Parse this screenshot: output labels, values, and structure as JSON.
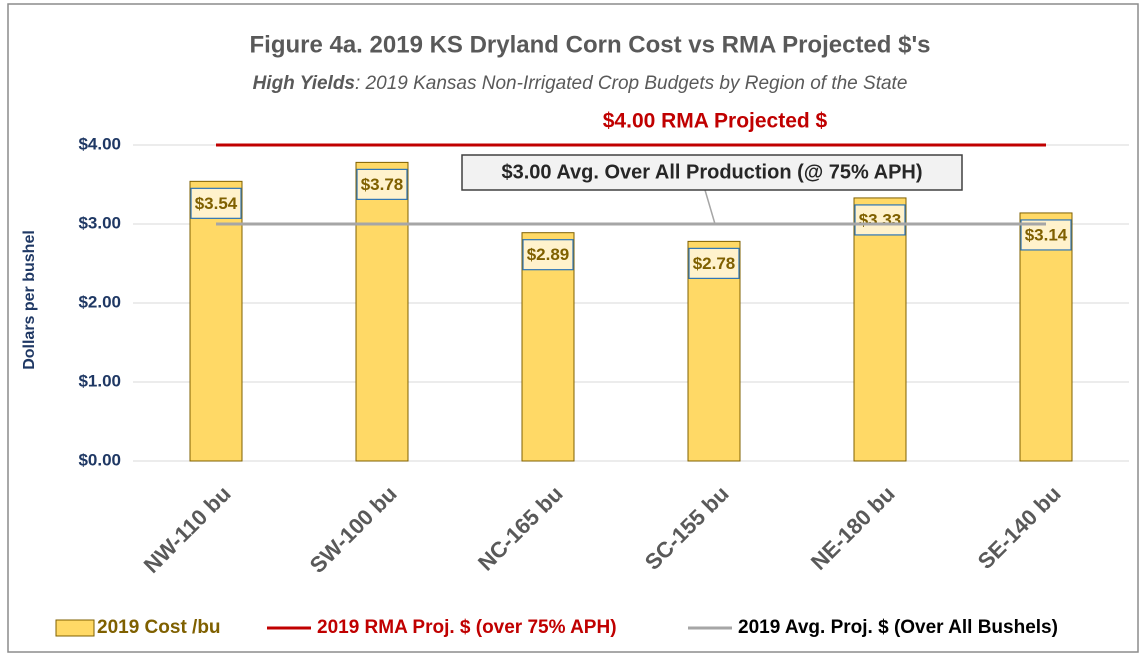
{
  "chart_data": {
    "type": "bar",
    "title": "Figure 4a. 2019 KS Dryland Corn Cost vs RMA Projected $'s",
    "subtitle_emphasis": "High Yields",
    "subtitle": ": 2019 Kansas Non-Irrigated Crop Budgets by Region of the State",
    "y_label": "Dollars per bushel",
    "categories": [
      "NW-110 bu",
      "SW-100 bu",
      "NC-165 bu",
      "SC-155 bu",
      "NE-180 bu",
      "SE-140 bu"
    ],
    "series": [
      {
        "name": "2019 Cost /bu",
        "type": "bar",
        "color": "#FFD966",
        "text_color": "#7f6000",
        "values": [
          3.54,
          3.78,
          2.89,
          2.78,
          3.33,
          3.14
        ],
        "value_labels": [
          "$3.54",
          "$3.78",
          "$2.89",
          "$2.78",
          "$3.33",
          "$3.14"
        ]
      },
      {
        "name": "2019 RMA Proj. $ (over 75% APH)",
        "type": "line",
        "color": "#c00000",
        "text_color": "#c00000",
        "values": [
          4.0,
          4.0,
          4.0,
          4.0,
          4.0,
          4.0
        ]
      },
      {
        "name": "2019 Avg. Proj. $ (Over All Bushels)",
        "type": "line",
        "color": "#a6a6a6",
        "text_color": "#000000",
        "values": [
          3.0,
          3.0,
          3.0,
          3.0,
          3.0,
          3.0
        ]
      }
    ],
    "annotations": [
      "$4.00 RMA Projected $",
      "$3.00 Avg. Over All Production (@ 75% APH)"
    ],
    "ylim": [
      0,
      4.0
    ],
    "yticks": [
      {
        "value": 0,
        "label": "$0.00"
      },
      {
        "value": 1,
        "label": "$1.00"
      },
      {
        "value": 2,
        "label": "$2.00"
      },
      {
        "value": 3,
        "label": "$3.00"
      },
      {
        "value": 4,
        "label": "$4.00"
      }
    ],
    "grid": true,
    "legend": "bottom"
  }
}
